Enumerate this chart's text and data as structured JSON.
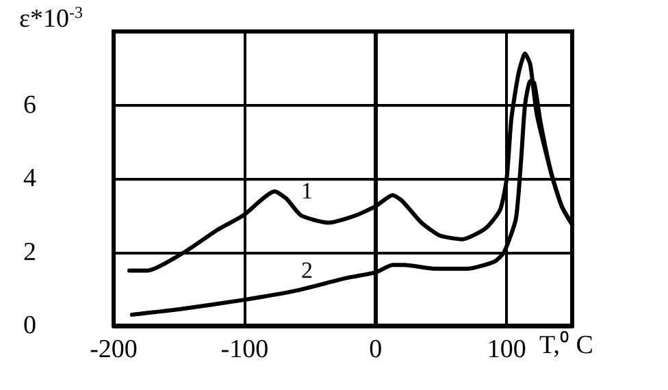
{
  "chart_data": {
    "type": "line",
    "xlabel": "T,⁰ C",
    "ylabel": "ε*10$^{-3}$",
    "xlim": [
      -200,
      150
    ],
    "xticks": [
      -200,
      -100,
      0,
      100
    ],
    "ylim": [
      0,
      8
    ],
    "yticks": [
      0,
      2,
      4,
      6
    ],
    "grid": true,
    "marker": "none",
    "line_style": "solid",
    "series": [
      {
        "color": "#000000",
        "x": [
          -188,
          -174,
          -146,
          -121,
          -101,
          -77,
          -68,
          -57,
          -36,
          -15,
          0,
          13,
          20,
          35,
          49,
          66,
          84,
          95,
          100,
          103.5,
          109,
          114,
          118,
          123,
          134,
          142,
          150
        ],
        "values": [
          1.5,
          1.5,
          2.0,
          2.6,
          3.0,
          3.65,
          3.45,
          3.0,
          2.8,
          3.0,
          3.25,
          3.55,
          3.4,
          2.8,
          2.45,
          2.35,
          2.65,
          3.15,
          4.0,
          5.6,
          6.85,
          7.4,
          7.1,
          5.75,
          4.15,
          3.25,
          2.75
        ]
      },
      {
        "color": "#000000",
        "x": [
          -186,
          -149,
          -101,
          -61,
          -22,
          0,
          13,
          22,
          45,
          70,
          91,
          98,
          107,
          111,
          114,
          118,
          121,
          126,
          134,
          142,
          150
        ],
        "values": [
          0.3,
          0.45,
          0.7,
          0.95,
          1.3,
          1.45,
          1.65,
          1.65,
          1.55,
          1.55,
          1.75,
          2.0,
          2.9,
          4.5,
          6.0,
          6.65,
          6.6,
          5.5,
          4.15,
          3.25,
          2.75
        ]
      }
    ],
    "annotations": [
      "1",
      "2"
    ]
  }
}
